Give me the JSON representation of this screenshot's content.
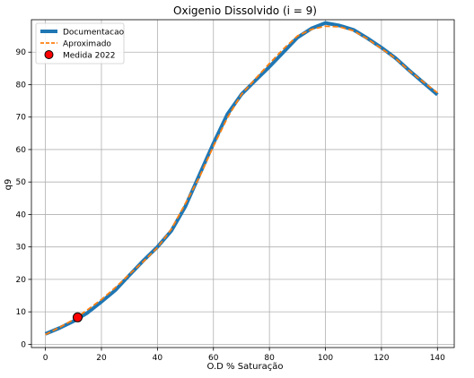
{
  "chart_data": {
    "type": "line",
    "title": "Oxigenio Dissolvido (i = 9)",
    "xlabel": "O.D % Saturação",
    "ylabel": "q9",
    "xlim": [
      -5,
      146
    ],
    "ylim": [
      -1,
      100
    ],
    "xticks": [
      0,
      20,
      40,
      60,
      80,
      100,
      120,
      140
    ],
    "yticks": [
      0,
      10,
      20,
      30,
      40,
      50,
      60,
      70,
      80,
      90
    ],
    "grid": true,
    "legend_position": "top-left",
    "series": [
      {
        "name": "Documentacao",
        "style": "thick-solid",
        "color": "#1f77b4",
        "x": [
          0,
          5,
          10,
          15,
          20,
          25,
          30,
          35,
          40,
          45,
          50,
          55,
          60,
          65,
          70,
          75,
          80,
          85,
          90,
          95,
          100,
          105,
          110,
          115,
          120,
          125,
          130,
          135,
          140
        ],
        "y": [
          3.2,
          5.0,
          7.1,
          9.7,
          13.1,
          16.7,
          21.3,
          25.8,
          30.0,
          35.0,
          42.5,
          52.2,
          61.9,
          70.9,
          77.0,
          81.3,
          85.5,
          90.0,
          94.5,
          97.3,
          99.0,
          98.2,
          96.9,
          94.3,
          91.4,
          88.2,
          84.3,
          80.6,
          76.9
        ]
      },
      {
        "name": "Aproximado",
        "style": "dashed",
        "color": "#ff7f0e",
        "x": [
          0,
          5,
          10,
          15,
          20,
          25,
          30,
          35,
          40,
          45,
          50,
          55,
          60,
          65,
          70,
          75,
          80,
          85,
          90,
          95,
          100,
          105,
          110,
          115,
          120,
          125,
          130,
          135,
          140
        ],
        "y": [
          3.0,
          5.2,
          7.6,
          10.6,
          13.8,
          17.5,
          21.6,
          25.5,
          29.8,
          35.5,
          43.4,
          51.5,
          61.0,
          69.8,
          77.0,
          81.8,
          86.5,
          91.0,
          95.0,
          97.0,
          98.0,
          97.8,
          96.6,
          94.1,
          91.1,
          88.1,
          84.2,
          80.8,
          77.5
        ]
      },
      {
        "name": "Medida 2022",
        "style": "marker",
        "color": "#ff0000",
        "x": [
          11.5
        ],
        "y": [
          8.3
        ]
      }
    ]
  }
}
